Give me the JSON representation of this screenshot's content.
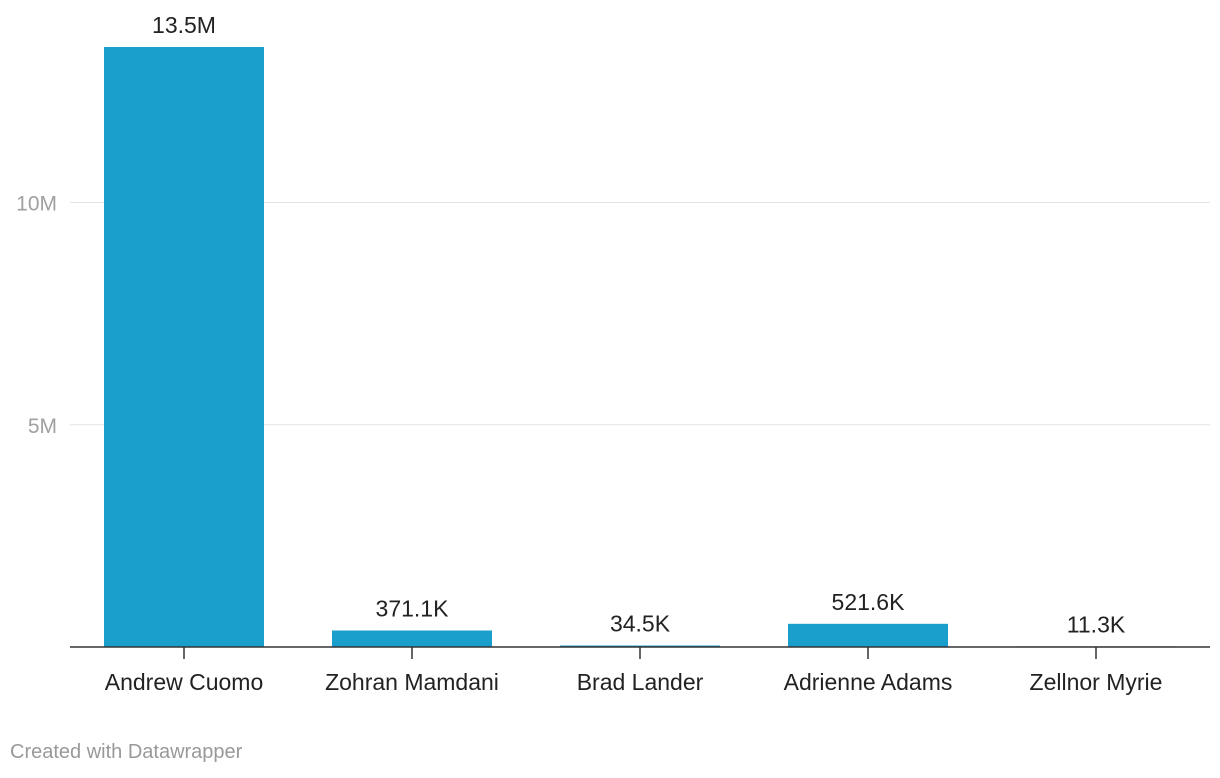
{
  "chart_data": {
    "type": "bar",
    "categories": [
      "Andrew Cuomo",
      "Zohran Mamdani",
      "Brad Lander",
      "Adrienne Adams",
      "Zellnor Myrie"
    ],
    "values": [
      13500000,
      371100,
      34500,
      521600,
      11300
    ],
    "value_labels": [
      "13.5M",
      "371.1K",
      "34.5K",
      "521.6K",
      "11.3K"
    ],
    "ylim": [
      0,
      13500000
    ],
    "yticks": [
      {
        "value": 5000000,
        "label": "5M"
      },
      {
        "value": 10000000,
        "label": "10M"
      }
    ],
    "grid": true,
    "bar_color": "#1a9fcd"
  },
  "footer": {
    "credit": "Created with Datawrapper"
  }
}
